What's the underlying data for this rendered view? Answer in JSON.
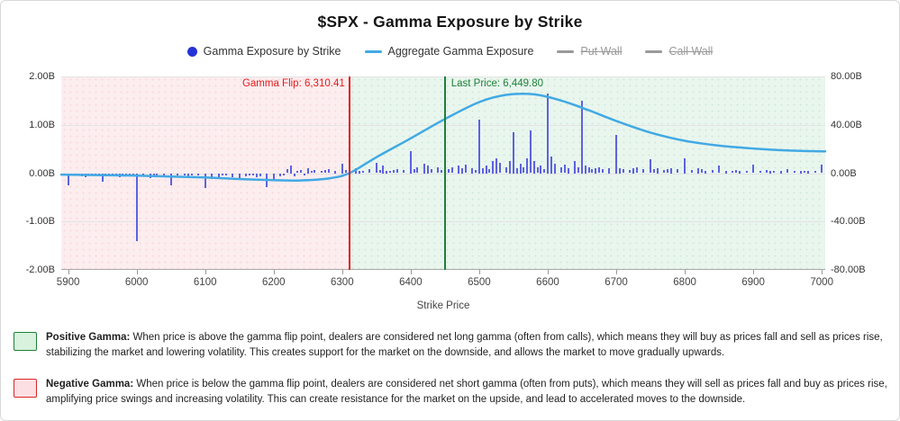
{
  "page": {
    "title": "$SPX - Gamma Exposure by Strike"
  },
  "legend": {
    "items": [
      {
        "label": "Gamma Exposure by Strike",
        "swatch": "dot",
        "color": "#2533d6",
        "disabled": false
      },
      {
        "label": "Aggregate Gamma Exposure",
        "swatch": "line",
        "color": "#41a9e4",
        "disabled": false
      },
      {
        "label": "Put Wall",
        "swatch": "line",
        "color": "#999999",
        "disabled": true
      },
      {
        "label": "Call Wall",
        "swatch": "line",
        "color": "#999999",
        "disabled": true
      }
    ]
  },
  "chart_data": {
    "type": "bar",
    "title": "$SPX - Gamma Exposure by Strike",
    "xlabel": "Strike Price",
    "x_domain": [
      5890,
      7005
    ],
    "x_ticks": [
      5900,
      6000,
      6100,
      6200,
      6300,
      6400,
      6500,
      6600,
      6700,
      6800,
      6900,
      7000
    ],
    "y_left": {
      "min": -2,
      "max": 2,
      "tick_labels": [
        "2.00B",
        "1.00B",
        "0.00B",
        "-1.00B",
        "-2.00B"
      ]
    },
    "y_right": {
      "min": -80,
      "max": 80,
      "tick_labels": [
        "80.00B",
        "40.00B",
        "0.00B",
        "-40.00B",
        "-80.00B"
      ]
    },
    "gamma_flip": {
      "label": "Gamma Flip: 6,310.41",
      "value": 6310.41,
      "color": "#e11d1d"
    },
    "last_price": {
      "label": "Last Price: 6,449.80",
      "value": 6449.8,
      "color": "#1e8038"
    },
    "regions": [
      {
        "name": "negative-gamma-zone",
        "from": 5890,
        "to": 6310.41,
        "fill": "#fcedef",
        "dot": "rgba(225,29,29,0.10)"
      },
      {
        "name": "positive-gamma-zone",
        "from": 6310.41,
        "to": 7005,
        "fill": "#e9f6ee",
        "dot": "rgba(30,128,56,0.12)"
      }
    ],
    "bars": {
      "name": "Gamma Exposure by Strike",
      "color": "#5c63e0",
      "unit": "B (left axis)",
      "points": [
        [
          5900,
          -0.26
        ],
        [
          5905,
          -0.04
        ],
        [
          5910,
          -0.05
        ],
        [
          5915,
          -0.03
        ],
        [
          5920,
          -0.06
        ],
        [
          5925,
          -0.08
        ],
        [
          5930,
          -0.04
        ],
        [
          5935,
          -0.03
        ],
        [
          5940,
          -0.05
        ],
        [
          5945,
          -0.03
        ],
        [
          5950,
          -0.17
        ],
        [
          5955,
          -0.04
        ],
        [
          5960,
          -0.06
        ],
        [
          5965,
          -0.03
        ],
        [
          5970,
          -0.05
        ],
        [
          5975,
          -0.09
        ],
        [
          5980,
          -0.04
        ],
        [
          5985,
          -0.03
        ],
        [
          5990,
          -0.06
        ],
        [
          5995,
          -0.04
        ],
        [
          6000,
          -1.4
        ],
        [
          6010,
          -0.07
        ],
        [
          6020,
          -0.1
        ],
        [
          6025,
          -0.06
        ],
        [
          6030,
          -0.04
        ],
        [
          6040,
          -0.06
        ],
        [
          6050,
          -0.25
        ],
        [
          6060,
          -0.05
        ],
        [
          6070,
          -0.04
        ],
        [
          6075,
          -0.07
        ],
        [
          6080,
          -0.05
        ],
        [
          6090,
          -0.04
        ],
        [
          6100,
          -0.31
        ],
        [
          6110,
          -0.12
        ],
        [
          6120,
          -0.1
        ],
        [
          6125,
          -0.05
        ],
        [
          6130,
          -0.04
        ],
        [
          6140,
          -0.08
        ],
        [
          6150,
          -0.13
        ],
        [
          6160,
          -0.06
        ],
        [
          6165,
          -0.04
        ],
        [
          6170,
          -0.05
        ],
        [
          6175,
          -0.08
        ],
        [
          6180,
          -0.06
        ],
        [
          6190,
          -0.28
        ],
        [
          6200,
          -0.12
        ],
        [
          6210,
          -0.07
        ],
        [
          6215,
          -0.05
        ],
        [
          6220,
          0.08
        ],
        [
          6225,
          0.15
        ],
        [
          6230,
          -0.06
        ],
        [
          6235,
          0.04
        ],
        [
          6240,
          0.06
        ],
        [
          6245,
          -0.04
        ],
        [
          6250,
          0.1
        ],
        [
          6255,
          0.04
        ],
        [
          6260,
          0.06
        ],
        [
          6270,
          0.04
        ],
        [
          6275,
          0.06
        ],
        [
          6280,
          0.08
        ],
        [
          6290,
          0.05
        ],
        [
          6300,
          0.2
        ],
        [
          6305,
          0.06
        ],
        [
          6320,
          0.1
        ],
        [
          6325,
          0.05
        ],
        [
          6330,
          0.04
        ],
        [
          6340,
          0.08
        ],
        [
          6350,
          0.22
        ],
        [
          6355,
          0.06
        ],
        [
          6360,
          0.15
        ],
        [
          6365,
          0.05
        ],
        [
          6370,
          0.04
        ],
        [
          6375,
          0.06
        ],
        [
          6380,
          0.08
        ],
        [
          6390,
          0.06
        ],
        [
          6400,
          0.45
        ],
        [
          6405,
          0.08
        ],
        [
          6410,
          0.12
        ],
        [
          6420,
          0.2
        ],
        [
          6425,
          0.15
        ],
        [
          6430,
          0.08
        ],
        [
          6440,
          0.12
        ],
        [
          6445,
          0.06
        ],
        [
          6450,
          0.3
        ],
        [
          6455,
          0.08
        ],
        [
          6460,
          0.12
        ],
        [
          6470,
          0.15
        ],
        [
          6475,
          0.1
        ],
        [
          6480,
          0.18
        ],
        [
          6490,
          0.1
        ],
        [
          6495,
          0.06
        ],
        [
          6500,
          1.1
        ],
        [
          6505,
          0.1
        ],
        [
          6510,
          0.15
        ],
        [
          6515,
          0.08
        ],
        [
          6520,
          0.25
        ],
        [
          6525,
          0.3
        ],
        [
          6530,
          0.22
        ],
        [
          6540,
          0.12
        ],
        [
          6545,
          0.25
        ],
        [
          6550,
          0.85
        ],
        [
          6555,
          0.1
        ],
        [
          6560,
          0.2
        ],
        [
          6565,
          0.12
        ],
        [
          6570,
          0.3
        ],
        [
          6575,
          0.88
        ],
        [
          6580,
          0.25
        ],
        [
          6585,
          0.12
        ],
        [
          6590,
          0.15
        ],
        [
          6595,
          0.08
        ],
        [
          6600,
          1.65
        ],
        [
          6605,
          0.35
        ],
        [
          6610,
          0.2
        ],
        [
          6620,
          0.12
        ],
        [
          6625,
          0.18
        ],
        [
          6630,
          0.1
        ],
        [
          6640,
          0.25
        ],
        [
          6645,
          0.12
        ],
        [
          6650,
          1.5
        ],
        [
          6655,
          0.15
        ],
        [
          6660,
          0.12
        ],
        [
          6665,
          0.08
        ],
        [
          6670,
          0.1
        ],
        [
          6675,
          0.12
        ],
        [
          6680,
          0.08
        ],
        [
          6690,
          0.1
        ],
        [
          6700,
          0.8
        ],
        [
          6705,
          0.1
        ],
        [
          6710,
          0.08
        ],
        [
          6720,
          0.06
        ],
        [
          6725,
          0.1
        ],
        [
          6730,
          0.12
        ],
        [
          6740,
          0.08
        ],
        [
          6750,
          0.28
        ],
        [
          6755,
          0.08
        ],
        [
          6760,
          0.1
        ],
        [
          6770,
          0.06
        ],
        [
          6775,
          0.08
        ],
        [
          6780,
          0.1
        ],
        [
          6790,
          0.08
        ],
        [
          6800,
          0.3
        ],
        [
          6810,
          0.06
        ],
        [
          6820,
          0.1
        ],
        [
          6825,
          0.08
        ],
        [
          6830,
          0.05
        ],
        [
          6840,
          0.06
        ],
        [
          6850,
          0.16
        ],
        [
          6860,
          0.05
        ],
        [
          6870,
          0.04
        ],
        [
          6875,
          0.06
        ],
        [
          6880,
          0.05
        ],
        [
          6890,
          0.04
        ],
        [
          6900,
          0.18
        ],
        [
          6910,
          0.04
        ],
        [
          6920,
          0.06
        ],
        [
          6925,
          0.05
        ],
        [
          6930,
          0.04
        ],
        [
          6940,
          0.05
        ],
        [
          6950,
          0.08
        ],
        [
          6960,
          0.04
        ],
        [
          6970,
          0.05
        ],
        [
          6975,
          0.04
        ],
        [
          6980,
          0.05
        ],
        [
          6990,
          0.04
        ],
        [
          7000,
          0.18
        ]
      ]
    },
    "line": {
      "name": "Aggregate Gamma Exposure",
      "color": "#41a9e4",
      "unit": "B (right axis = left axis x 40)",
      "points": [
        [
          5890,
          -0.03
        ],
        [
          5950,
          -0.04
        ],
        [
          6000,
          -0.05
        ],
        [
          6050,
          -0.07
        ],
        [
          6100,
          -0.09
        ],
        [
          6150,
          -0.12
        ],
        [
          6200,
          -0.145
        ],
        [
          6240,
          -0.15
        ],
        [
          6280,
          -0.11
        ],
        [
          6310.41,
          0.0
        ],
        [
          6350,
          0.33
        ],
        [
          6400,
          0.72
        ],
        [
          6450,
          1.12
        ],
        [
          6500,
          1.47
        ],
        [
          6540,
          1.62
        ],
        [
          6580,
          1.63
        ],
        [
          6620,
          1.5
        ],
        [
          6660,
          1.3
        ],
        [
          6700,
          1.08
        ],
        [
          6750,
          0.84
        ],
        [
          6800,
          0.67
        ],
        [
          6850,
          0.57
        ],
        [
          6900,
          0.51
        ],
        [
          6950,
          0.47
        ],
        [
          7005,
          0.45
        ]
      ]
    }
  },
  "annotations": {
    "positive": {
      "label": "Positive Gamma:",
      "text": " When price is above the gamma flip point, dealers are considered net long gamma (often from calls), which means they will buy as prices fall and sell as prices rise, stabilizing the market and lowering volatility. This creates support for the market on the downside, and allows the market to move gradually upwards.",
      "swatch_fill": "#d9f2dd",
      "swatch_border": "#1e8038"
    },
    "negative": {
      "label": "Negative Gamma:",
      "text": " When price is below the gamma flip point, dealers are considered net short gamma (often from puts), which means they will sell as prices fall and buy as prices rise, amplifying price swings and increasing volatility. This can create resistance for the market on the upside, and lead to accelerated moves to the downside.",
      "swatch_fill": "#fbdfe3",
      "swatch_border": "#dc2626"
    }
  }
}
